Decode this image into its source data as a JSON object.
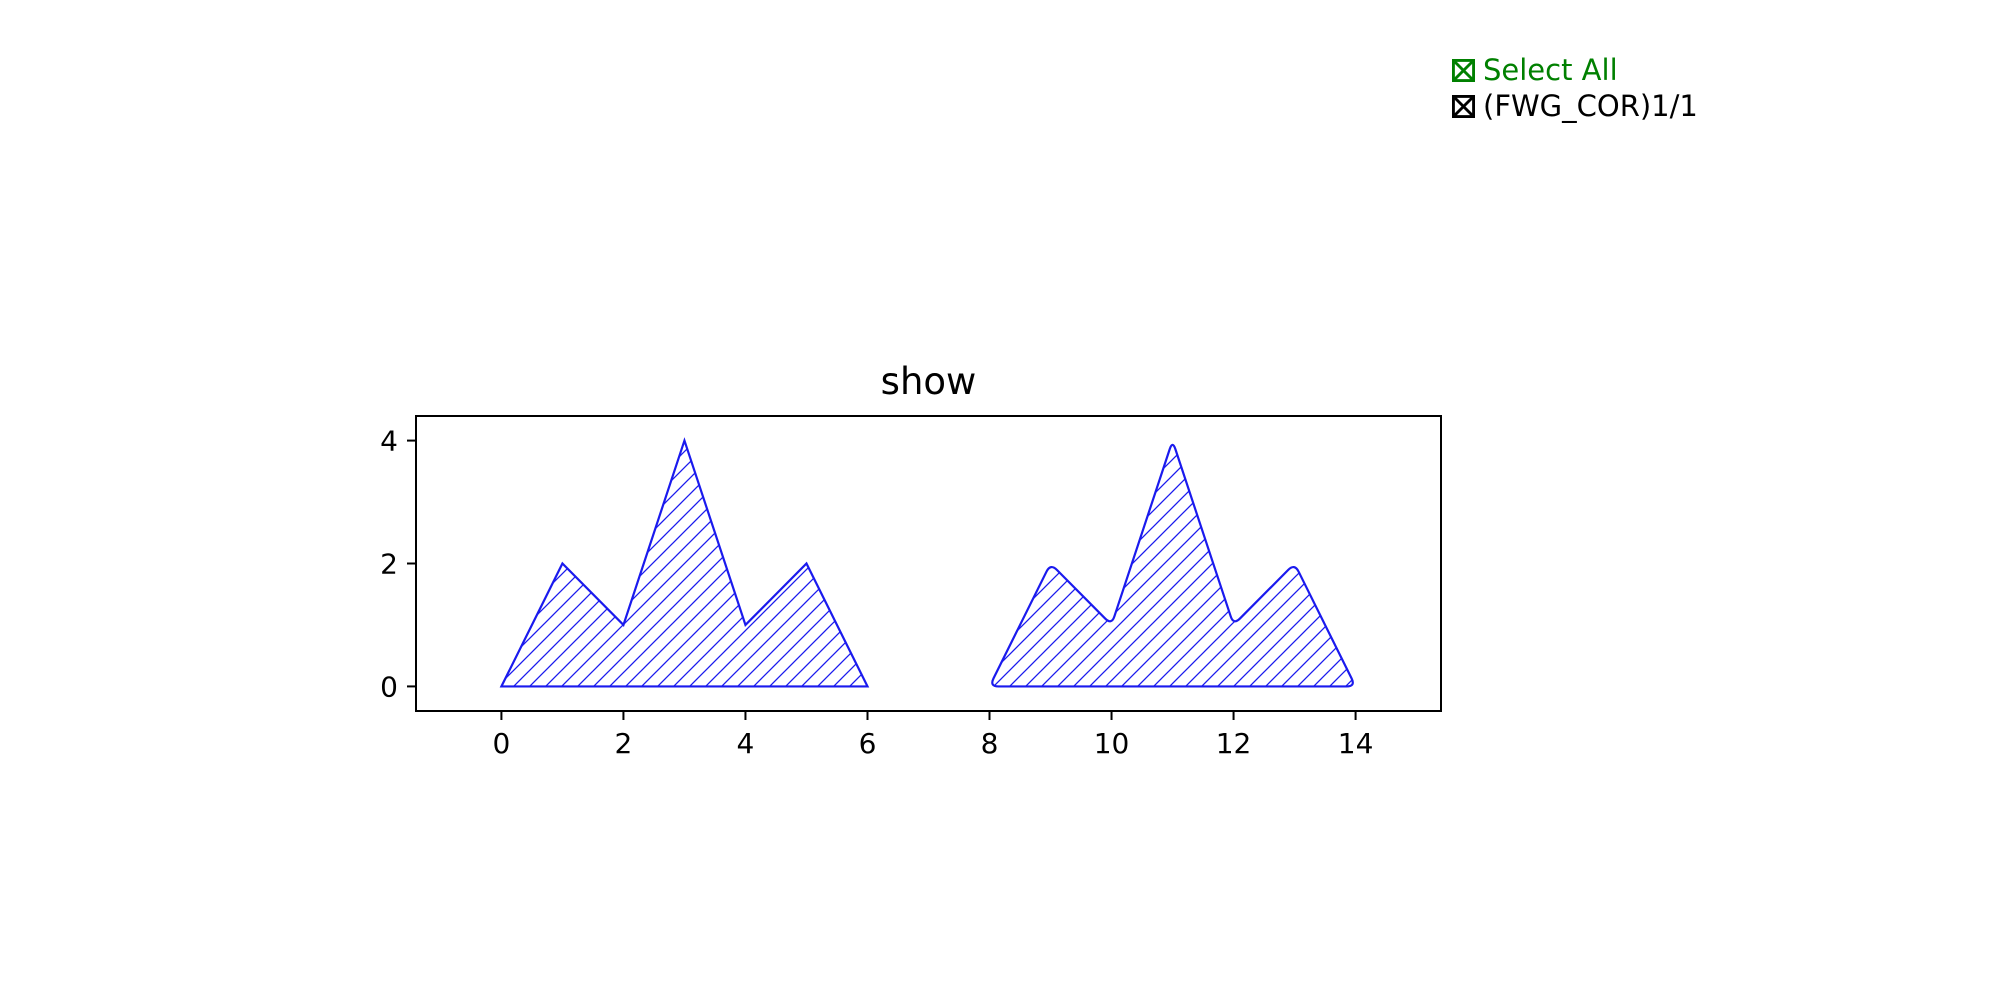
{
  "colors": {
    "series": "#1a1aee",
    "select_all": "#008000",
    "item": "#000000",
    "axes": "#000000"
  },
  "legend": {
    "select_all_label": "Select All",
    "select_all_icon": "checked-box-icon",
    "items": [
      {
        "label": "(FWG_COR)1/1",
        "icon": "checked-box-icon"
      }
    ]
  },
  "chart_data": {
    "type": "area",
    "title": "show",
    "xlabel": "",
    "ylabel": "",
    "xlim": [
      -1.4,
      15.4
    ],
    "ylim": [
      -0.4,
      4.4
    ],
    "xticks": [
      0,
      2,
      4,
      6,
      8,
      10,
      12,
      14
    ],
    "yticks": [
      0,
      2,
      4
    ],
    "grid": false,
    "legend_position": "top-right",
    "fill_pattern": "hatch",
    "series": [
      {
        "corners": "sharp",
        "points": [
          [
            0,
            0
          ],
          [
            1,
            2
          ],
          [
            2,
            1
          ],
          [
            3,
            4
          ],
          [
            4,
            1
          ],
          [
            5,
            2
          ],
          [
            6,
            0
          ]
        ]
      },
      {
        "corners": "rounded",
        "points": [
          [
            8,
            0
          ],
          [
            9,
            2
          ],
          [
            10,
            1
          ],
          [
            11,
            4
          ],
          [
            12,
            1
          ],
          [
            13,
            2
          ],
          [
            14,
            0
          ]
        ]
      }
    ]
  }
}
